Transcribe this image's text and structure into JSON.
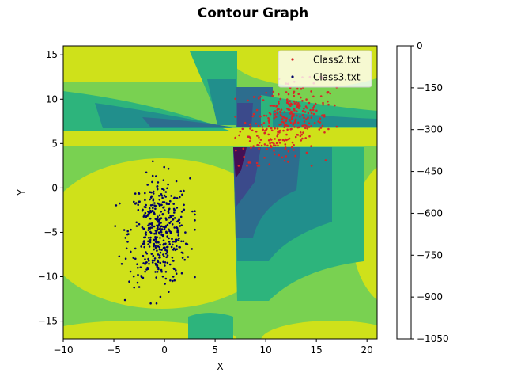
{
  "chart_data": {
    "type": "scatter",
    "title": "Contour Graph",
    "xlabel": "X",
    "ylabel": "Y",
    "xlim": [
      -10,
      21
    ],
    "ylim": [
      -17,
      16
    ],
    "xticks": [
      -10,
      -5,
      0,
      5,
      10,
      15,
      20
    ],
    "yticks": [
      -15,
      -10,
      -5,
      0,
      5,
      10,
      15
    ],
    "grid": false,
    "legend_position": "top-right",
    "contour": {
      "type": "filled contour",
      "levels": [
        -1050,
        -900,
        -750,
        -600,
        -450,
        -300,
        -150,
        0
      ],
      "colorbar_ticks": [
        "0",
        "−150",
        "−300",
        "−450",
        "−600",
        "−750",
        "−900",
        "−1050"
      ],
      "colors": [
        "#440f54",
        "#3b4a8b",
        "#2d6d8e",
        "#218f8c",
        "#2db47c",
        "#79d151",
        "#cfe11a"
      ]
    },
    "series": [
      {
        "name": "Class2.txt",
        "color": "#d62728",
        "marker": "dot",
        "center": [
          12,
          7.5
        ],
        "spread": [
          2.0,
          2.2
        ],
        "approx_count": 320,
        "range_x": [
          7,
          17
        ],
        "range_y": [
          2.5,
          12.5
        ]
      },
      {
        "name": "Class3.txt",
        "color": "#000066",
        "marker": "dot",
        "center": [
          -0.5,
          -5
        ],
        "spread": [
          1.5,
          3.0
        ],
        "approx_count": 420,
        "range_x": [
          -6,
          3
        ],
        "range_y": [
          -13,
          3
        ]
      }
    ]
  }
}
